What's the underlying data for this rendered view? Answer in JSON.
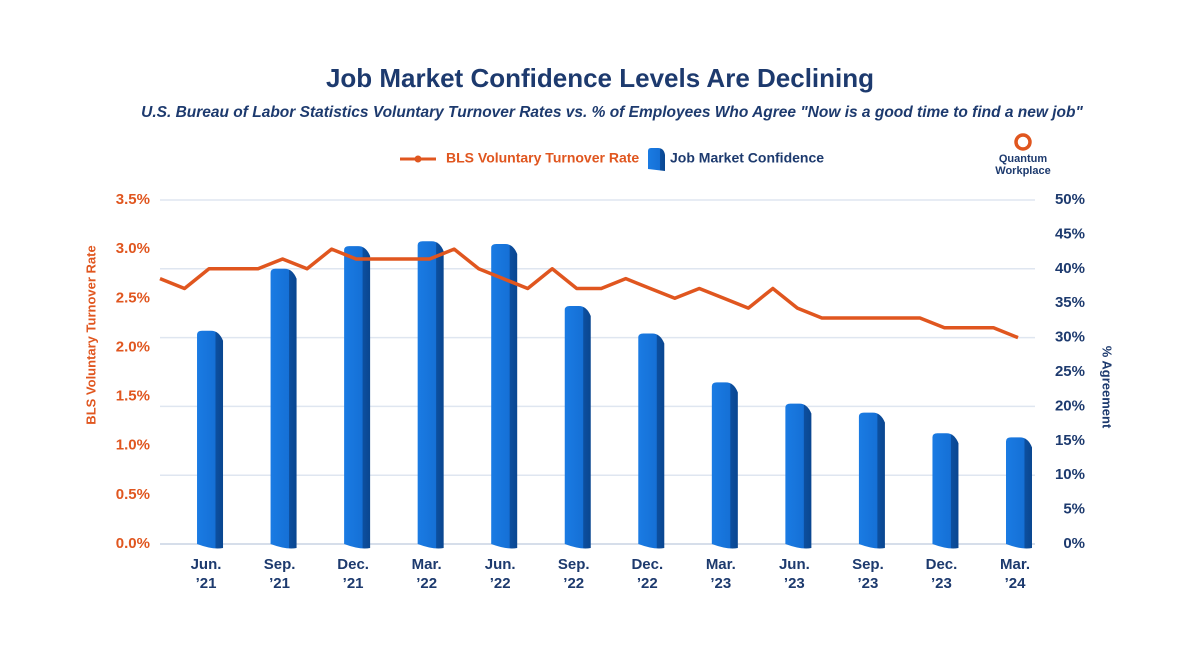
{
  "chart_data": {
    "type": "combo",
    "title": "Job Market Confidence Levels Are Declining",
    "subtitle": "U.S. Bureau of Labor Statistics Voluntary Turnover Rates vs. % of Employees Who Agree \"Now is a good time to find a new job\"",
    "logo": "Quantum\nWorkplace",
    "y_label": "BLS Voluntary Turnover Rate",
    "y2_label": "% Agreement",
    "categories": [
      null,
      null,
      "Jun.\n’21",
      null,
      null,
      "Sep.\n’21",
      null,
      null,
      "Dec.\n’21",
      null,
      null,
      "Mar.\n’22",
      null,
      null,
      "Jun.\n’22",
      null,
      null,
      "Sep.\n’22",
      null,
      null,
      "Dec.\n’22",
      null,
      null,
      "Mar.\n’23",
      null,
      null,
      "Jun.\n’23",
      null,
      null,
      "Sep.\n’23",
      null,
      null,
      "Dec.\n’23",
      null,
      null,
      "Mar.\n’24"
    ],
    "series": [
      {
        "name": "BLS Voluntary Turnover Rate",
        "type": "line",
        "color": "#e0561f",
        "values": [
          2.7,
          2.6,
          2.8,
          2.8,
          2.8,
          2.9,
          2.8,
          3.0,
          2.9,
          2.9,
          2.9,
          2.9,
          3.0,
          2.8,
          2.7,
          2.6,
          2.8,
          2.6,
          2.6,
          2.7,
          2.6,
          2.5,
          2.6,
          2.5,
          2.4,
          2.6,
          2.4,
          2.3,
          2.3,
          2.3,
          2.3,
          2.3,
          2.2,
          2.2,
          2.2,
          2.1
        ]
      },
      {
        "name": "Job Market Confidence",
        "type": "bar",
        "axis": "y2",
        "color": "#1570d6",
        "values": [
          null,
          null,
          31,
          null,
          null,
          40,
          null,
          null,
          43.3,
          null,
          null,
          44,
          null,
          null,
          43.6,
          null,
          null,
          34.6,
          null,
          null,
          30.6,
          null,
          null,
          23.5,
          null,
          null,
          20.4,
          null,
          null,
          19.1,
          null,
          null,
          16.1,
          null,
          null,
          15.5
        ]
      }
    ],
    "ylim": [
      0,
      3.5
    ],
    "yticks": [
      {
        "value": 0,
        "label": "0.0%"
      },
      {
        "value": 0.5,
        "label": "0.5%"
      },
      {
        "value": 1,
        "label": "1.0%"
      },
      {
        "value": 1.5,
        "label": "1.5%"
      },
      {
        "value": 2,
        "label": "2.0%"
      },
      {
        "value": 2.5,
        "label": "2.5%"
      },
      {
        "value": 3,
        "label": "3.0%"
      },
      {
        "value": 3.5,
        "label": "3.5%"
      }
    ],
    "y2lim": [
      0,
      50
    ],
    "y2ticks": [
      {
        "value": 0,
        "label": "0%"
      },
      {
        "value": 5,
        "label": "5%"
      },
      {
        "value": 10,
        "label": "10%"
      },
      {
        "value": 15,
        "label": "15%"
      },
      {
        "value": 20,
        "label": "20%"
      },
      {
        "value": 25,
        "label": "25%"
      },
      {
        "value": 30,
        "label": "30%"
      },
      {
        "value": 35,
        "label": "35%"
      },
      {
        "value": 40,
        "label": "40%"
      },
      {
        "value": 45,
        "label": "45%"
      },
      {
        "value": 50,
        "label": "50%"
      }
    ],
    "grid": true,
    "legend": "top"
  }
}
